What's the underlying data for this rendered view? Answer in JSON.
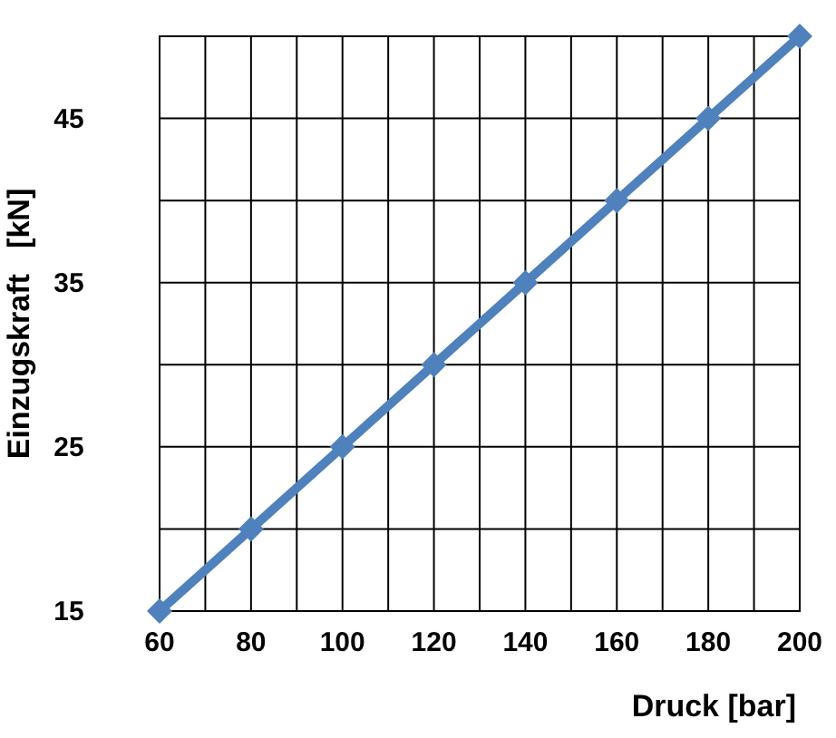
{
  "chart_data": {
    "type": "line",
    "xlabel": "Druck [bar]",
    "ylabel": "Einzugskraft   [kN]",
    "x": [
      60,
      80,
      100,
      120,
      140,
      160,
      180,
      200
    ],
    "series": [
      {
        "color": "#4f81bd",
        "values": [
          15,
          20,
          25,
          30,
          35,
          40,
          45,
          50
        ]
      }
    ],
    "xlim": [
      60,
      200
    ],
    "ylim": [
      15,
      50
    ],
    "xticks": [
      60,
      {
        "value": 70,
        "label": null
      },
      80,
      {
        "value": 90,
        "label": null
      },
      100,
      {
        "value": 110,
        "label": null
      },
      120,
      {
        "value": 130,
        "label": null
      },
      140,
      {
        "value": 150,
        "label": null
      },
      160,
      {
        "value": 170,
        "label": null
      },
      180,
      {
        "value": 190,
        "label": null
      },
      200
    ],
    "yticks": [
      15,
      {
        "value": 20,
        "label": null
      },
      25,
      {
        "value": 30,
        "label": null
      },
      35,
      {
        "value": 40,
        "label": null
      },
      45,
      {
        "value": 50,
        "label": null
      }
    ],
    "grid": true,
    "marker": "diamond",
    "line_style": "solid"
  }
}
